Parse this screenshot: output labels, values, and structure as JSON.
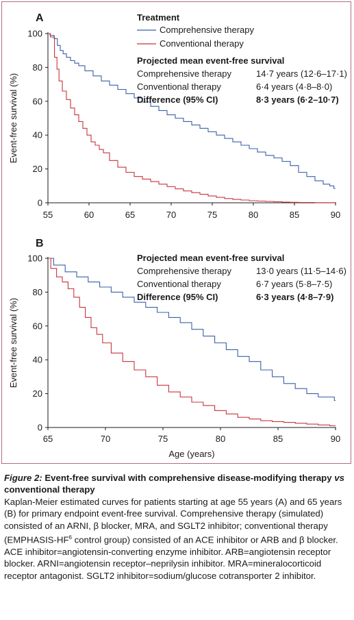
{
  "legend": {
    "title": "Treatment",
    "items": [
      {
        "label": "Comprehensive therapy",
        "color": "#3a5fa8"
      },
      {
        "label": "Conventional therapy",
        "color": "#c8333b"
      }
    ]
  },
  "chart_data": [
    {
      "type": "line",
      "panel": "A",
      "xlabel": "",
      "ylabel": "Event-free survival (%)",
      "xlim": [
        55,
        90
      ],
      "ylim": [
        0,
        100
      ],
      "xticks": [
        "55",
        "60",
        "65",
        "70",
        "75",
        "80",
        "85",
        "90"
      ],
      "yticks": [
        "0",
        "20",
        "40",
        "60",
        "80",
        "100"
      ],
      "annotation": {
        "title": "Projected mean event-free survival",
        "rows": [
          {
            "label": "Comprehensive therapy",
            "value": "14·7 years (12·6–17·1)",
            "bold": false
          },
          {
            "label": "Conventional therapy",
            "value": "6·4 years (4·8–8·0)",
            "bold": false
          },
          {
            "label": "Difference (95% CI)",
            "value": "8·3 years (6·2–10·7)",
            "bold": true
          }
        ]
      },
      "series": [
        {
          "name": "Comprehensive therapy",
          "color": "#3a5fa8",
          "x": [
            55,
            55.5,
            56,
            56.3,
            56.7,
            57,
            57.5,
            58,
            58.5,
            59,
            60,
            61,
            62,
            63,
            64,
            65,
            66,
            67,
            68,
            69,
            70,
            71,
            72,
            73,
            74,
            75,
            76,
            77,
            78,
            79,
            80,
            81,
            82,
            83,
            84,
            85,
            86,
            87,
            88,
            89,
            89.6,
            90
          ],
          "y": [
            100,
            99,
            97,
            93,
            90,
            88,
            86,
            84,
            82.5,
            81,
            78,
            75,
            72,
            69.5,
            67,
            64.5,
            62,
            59.5,
            57,
            54.5,
            52,
            50,
            48,
            46,
            44,
            42,
            40,
            38,
            36,
            34,
            32,
            30,
            28,
            26.5,
            24.5,
            22,
            18,
            15.5,
            13,
            11,
            10,
            8.5
          ]
        },
        {
          "name": "Conventional therapy",
          "color": "#c8333b",
          "x": [
            55,
            55.6,
            56,
            56.2,
            56.5,
            57,
            57.5,
            58,
            58.5,
            59,
            59.5,
            60,
            60.5,
            61,
            61.5,
            62,
            63,
            64,
            65,
            66,
            67,
            68,
            69,
            70,
            71,
            72,
            73,
            74,
            75,
            76,
            77,
            78,
            79,
            80,
            81,
            82,
            83,
            84,
            85,
            86,
            87,
            88,
            89,
            90
          ],
          "y": [
            100,
            98,
            86,
            79,
            72,
            66,
            61,
            56,
            52,
            48,
            44,
            40,
            36,
            34,
            31.5,
            29.5,
            25,
            21,
            18,
            15.5,
            14,
            12.5,
            11,
            9.5,
            8.2,
            7,
            6,
            5,
            4,
            3.2,
            2.5,
            2,
            1.6,
            1.2,
            1,
            0.8,
            0.6,
            0.4,
            0.3,
            0.2,
            0.2,
            0.1,
            0.1,
            0.1
          ]
        }
      ]
    },
    {
      "type": "line",
      "panel": "B",
      "xlabel": "Age (years)",
      "ylabel": "Event-free survival (%)",
      "xlim": [
        65,
        90
      ],
      "ylim": [
        0,
        100
      ],
      "xticks": [
        "65",
        "70",
        "75",
        "80",
        "85",
        "90"
      ],
      "yticks": [
        "0",
        "20",
        "40",
        "60",
        "80",
        "100"
      ],
      "annotation": {
        "title": "Projected mean event-free survival",
        "rows": [
          {
            "label": "Comprehensive therapy",
            "value": "13·0 years (11·5–14·6)",
            "bold": false
          },
          {
            "label": "Conventional therapy",
            "value": "6·7 years (5·8–7·5)",
            "bold": false
          },
          {
            "label": "Difference (95% CI)",
            "value": "6·3 years (4·8–7·9)",
            "bold": true
          }
        ]
      },
      "series": [
        {
          "name": "Comprehensive therapy",
          "color": "#3a5fa8",
          "x": [
            65,
            66,
            67,
            68,
            69,
            70,
            71,
            72,
            73,
            74,
            75,
            76,
            77,
            78,
            79,
            80,
            81,
            82,
            83,
            84,
            85,
            86,
            87,
            88,
            89,
            89.8,
            90
          ],
          "y": [
            100,
            96,
            92,
            89,
            86,
            83,
            80,
            77,
            74,
            71,
            68,
            65,
            62,
            58,
            54,
            50,
            46,
            42,
            39,
            34,
            30,
            26,
            23,
            20,
            18,
            18,
            16
          ]
        },
        {
          "name": "Conventional therapy",
          "color": "#c8333b",
          "x": [
            65,
            65.5,
            66,
            66.5,
            67,
            67.5,
            68,
            68.5,
            69,
            69.5,
            70,
            71,
            72,
            73,
            74,
            75,
            76,
            77,
            78,
            79,
            80,
            81,
            82,
            83,
            84,
            85,
            86,
            87,
            88,
            89,
            90
          ],
          "y": [
            100,
            94,
            89,
            86,
            82,
            77,
            71,
            65,
            59,
            55,
            50,
            44,
            39,
            34,
            30,
            25,
            21,
            18,
            15,
            13,
            10,
            8,
            6,
            5,
            4,
            3.5,
            3,
            2.5,
            2,
            1.5,
            1
          ]
        }
      ]
    }
  ],
  "caption": {
    "heading": "Figure 2:",
    "title_part1": " Event-free survival with comprehensive disease-modifying therapy ",
    "title_vs": "vs",
    "title_part2": " conventional therapy",
    "body_1": "Kaplan-Meier estimated curves for patients starting at age 55 years (A) and 65 years (B) for primary endpoint event-free survival. Comprehensive therapy (simulated) consisted of an ARNI, β blocker, MRA, and SGLT2 inhibitor; conventional therapy (EMPHASIS-HF",
    "body_sup": "6",
    "body_2": " control group) consisted of an ACE inhibitor or ARB and β blocker. ACE inhibitor=angiotensin-converting enzyme inhibitor. ARB=angiotensin receptor blocker. ARNI=angiotensin receptor–neprilysin inhibitor. MRA=mineralocorticoid receptor antagonist. SGLT2 inhibitor=sodium/glucose cotransporter 2 inhibitor."
  }
}
